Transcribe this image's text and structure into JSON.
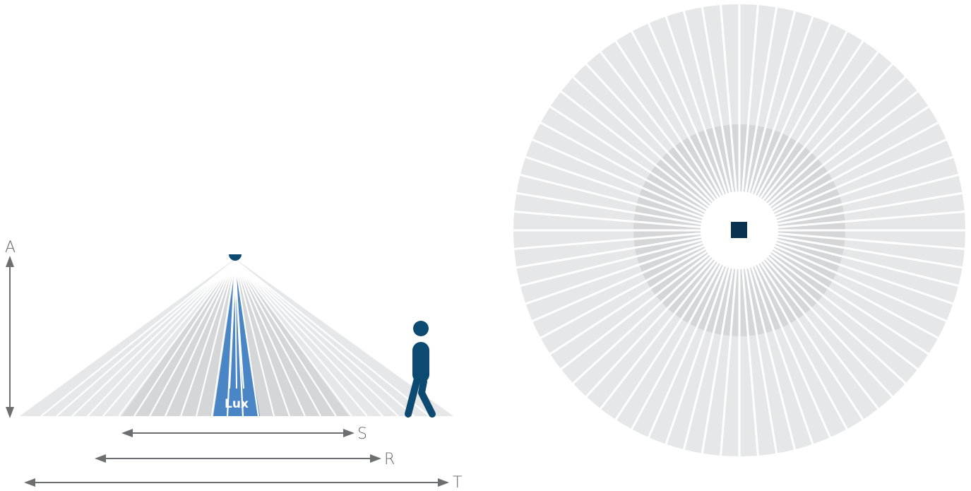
{
  "labels": {
    "height": "A",
    "inner_range": "S",
    "middle_range": "R",
    "total_range": "T",
    "lux_zone": "Lux"
  },
  "colors": {
    "sensor": "#0c4a72",
    "person": "#0c4a72",
    "top_sensor": "#0b3150",
    "lux_zone": "#4a86c5",
    "outer_zone": "#e6e7e8",
    "mid_zone": "#d5d6d8",
    "arrow": "#6d6e70",
    "ray_gap": "#ffffff"
  },
  "icons": {
    "sensor_side": "ceiling-sensor-icon",
    "walker": "walking-person-icon",
    "sensor_top": "sensor-top-view-icon"
  }
}
